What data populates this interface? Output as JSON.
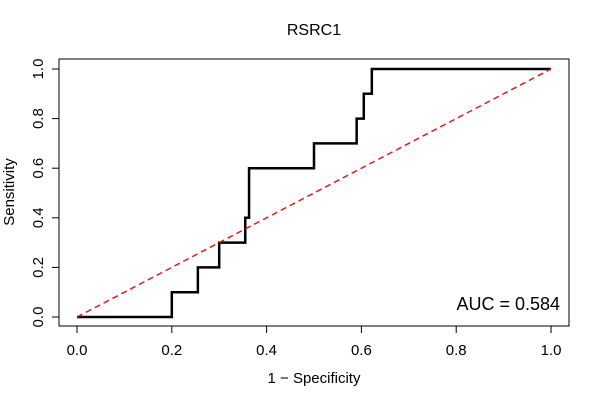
{
  "chart_data": {
    "type": "line",
    "title": "RSRC1",
    "xlabel": "1 − Specificity",
    "ylabel": "Sensitivity",
    "xlim": [
      0,
      1
    ],
    "ylim": [
      0,
      1
    ],
    "x_ticks": [
      0.0,
      0.2,
      0.4,
      0.6,
      0.8,
      1.0
    ],
    "y_ticks": [
      0.0,
      0.2,
      0.4,
      0.6,
      0.8,
      1.0
    ],
    "x_tick_labels": [
      "0.0",
      "0.2",
      "0.4",
      "0.6",
      "0.8",
      "1.0"
    ],
    "y_tick_labels": [
      "0.0",
      "0.2",
      "0.4",
      "0.6",
      "0.8",
      "1.0"
    ],
    "grid": false,
    "annotation": "AUC = 0.584",
    "series": [
      {
        "style": "step",
        "color": "#000000",
        "points": [
          [
            0.0,
            0.0
          ],
          [
            0.2,
            0.0
          ],
          [
            0.2,
            0.1
          ],
          [
            0.255,
            0.1
          ],
          [
            0.255,
            0.2
          ],
          [
            0.3,
            0.2
          ],
          [
            0.3,
            0.3
          ],
          [
            0.355,
            0.3
          ],
          [
            0.355,
            0.4
          ],
          [
            0.363,
            0.4
          ],
          [
            0.363,
            0.6
          ],
          [
            0.5,
            0.6
          ],
          [
            0.5,
            0.7
          ],
          [
            0.59,
            0.7
          ],
          [
            0.59,
            0.8
          ],
          [
            0.605,
            0.8
          ],
          [
            0.605,
            0.9
          ],
          [
            0.622,
            0.9
          ],
          [
            0.622,
            1.0
          ],
          [
            1.0,
            1.0
          ]
        ]
      },
      {
        "style": "dashed",
        "color": "#e31a1c",
        "points": [
          [
            0.0,
            0.0
          ],
          [
            1.0,
            1.0
          ]
        ]
      }
    ]
  }
}
